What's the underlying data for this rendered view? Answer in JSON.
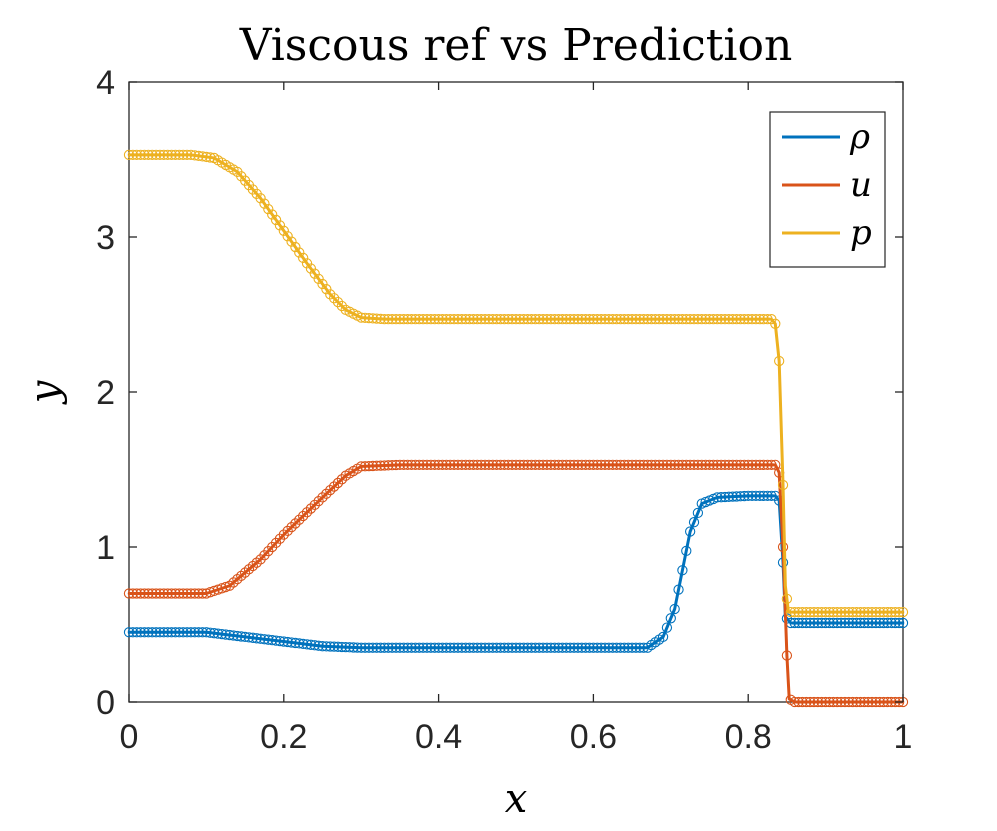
{
  "chart_data": {
    "type": "line",
    "title": "Viscous ref vs Prediction",
    "xlabel": "x",
    "ylabel": "y",
    "xlim": [
      0,
      1
    ],
    "ylim": [
      0,
      4
    ],
    "xticks": [
      "0",
      "0.2",
      "0.4",
      "0.6",
      "0.8",
      "1"
    ],
    "yticks": [
      "0",
      "1",
      "2",
      "3",
      "4"
    ],
    "legend_position": "top-right",
    "grid": false,
    "series": [
      {
        "name": "ρ",
        "color": "#0072BD",
        "style": "solid line (prediction) with open circle markers (reference)",
        "points": [
          [
            0,
            0.45
          ],
          [
            0.1,
            0.45
          ],
          [
            0.15,
            0.42
          ],
          [
            0.2,
            0.39
          ],
          [
            0.25,
            0.36
          ],
          [
            0.3,
            0.35
          ],
          [
            0.4,
            0.35
          ],
          [
            0.5,
            0.35
          ],
          [
            0.6,
            0.35
          ],
          [
            0.67,
            0.35
          ],
          [
            0.69,
            0.42
          ],
          [
            0.705,
            0.6
          ],
          [
            0.715,
            0.85
          ],
          [
            0.725,
            1.1
          ],
          [
            0.74,
            1.28
          ],
          [
            0.76,
            1.32
          ],
          [
            0.8,
            1.33
          ],
          [
            0.835,
            1.33
          ],
          [
            0.84,
            1.3
          ],
          [
            0.845,
            0.9
          ],
          [
            0.848,
            0.55
          ],
          [
            0.855,
            0.51
          ],
          [
            0.9,
            0.51
          ],
          [
            1,
            0.51
          ]
        ]
      },
      {
        "name": "u",
        "color": "#D95319",
        "style": "solid line (prediction) with open circle markers (reference)",
        "points": [
          [
            0,
            0.7
          ],
          [
            0.1,
            0.7
          ],
          [
            0.13,
            0.75
          ],
          [
            0.17,
            0.92
          ],
          [
            0.2,
            1.08
          ],
          [
            0.25,
            1.32
          ],
          [
            0.28,
            1.46
          ],
          [
            0.3,
            1.52
          ],
          [
            0.35,
            1.53
          ],
          [
            0.5,
            1.53
          ],
          [
            0.7,
            1.53
          ],
          [
            0.835,
            1.53
          ],
          [
            0.84,
            1.48
          ],
          [
            0.845,
            1.0
          ],
          [
            0.85,
            0.3
          ],
          [
            0.853,
            0.02
          ],
          [
            0.86,
            0.0
          ],
          [
            1,
            0.0
          ]
        ]
      },
      {
        "name": "p",
        "color": "#EDB120",
        "style": "solid line (prediction) with open circle markers (reference)",
        "points": [
          [
            0,
            3.53
          ],
          [
            0.08,
            3.53
          ],
          [
            0.11,
            3.51
          ],
          [
            0.14,
            3.42
          ],
          [
            0.17,
            3.25
          ],
          [
            0.2,
            3.04
          ],
          [
            0.23,
            2.83
          ],
          [
            0.26,
            2.63
          ],
          [
            0.28,
            2.53
          ],
          [
            0.3,
            2.48
          ],
          [
            0.33,
            2.47
          ],
          [
            0.5,
            2.47
          ],
          [
            0.7,
            2.47
          ],
          [
            0.83,
            2.47
          ],
          [
            0.835,
            2.44
          ],
          [
            0.84,
            2.2
          ],
          [
            0.845,
            1.4
          ],
          [
            0.848,
            0.75
          ],
          [
            0.852,
            0.58
          ],
          [
            0.86,
            0.58
          ],
          [
            1,
            0.58
          ]
        ]
      }
    ]
  }
}
